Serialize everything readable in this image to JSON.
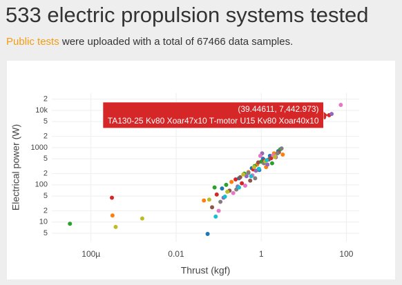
{
  "header": {
    "title": "533 electric propulsion systems tested",
    "subtitle_link": "Public tests",
    "subtitle_text": "were uploaded with a total of 67466 data samples."
  },
  "chart_data": {
    "type": "scatter",
    "xlabel": "Thrust (kgf)",
    "ylabel": "Electrical power (W)",
    "xlog": true,
    "ylog": true,
    "grid": true,
    "xlim": [
      1.2e-05,
      200
    ],
    "ylim": [
      3,
      29000
    ],
    "xticks": [
      {
        "value": 0.0001,
        "label": "100µ"
      },
      0.01,
      1,
      100
    ],
    "yticks": [
      5,
      10,
      {
        "value": 20,
        "label": "2"
      },
      {
        "value": 50,
        "label": "5"
      },
      100,
      {
        "value": 200,
        "label": "2"
      },
      {
        "value": 500,
        "label": "5"
      },
      1000,
      {
        "value": 2000,
        "label": "2"
      },
      {
        "value": 5000,
        "label": "5"
      },
      {
        "value": 10000,
        "label": "10k"
      },
      {
        "value": 20000,
        "label": "2"
      }
    ],
    "hover": {
      "label": "(39.44611, 7,442.973)",
      "name": "TA130-25 Kv80 Xoar47x10 T-motor U15 Kv80 Xoar40x10",
      "color": "#d62728",
      "x": 39.44611,
      "y": 7442.973
    },
    "series": [
      {
        "color": "#1f77b4",
        "x": [
          0.055,
          0.12,
          0.3,
          0.6,
          1.1,
          1.6,
          2.5,
          0.9
        ],
        "values": [
          4.8,
          80,
          150,
          280,
          500,
          600,
          800,
          250
        ]
      },
      {
        "color": "#ff7f0e",
        "x": [
          0.00032,
          0.045,
          0.2,
          0.5,
          0.8,
          1.3,
          2.0,
          3.2
        ],
        "values": [
          15,
          38,
          120,
          220,
          350,
          300,
          700,
          650
        ]
      },
      {
        "color": "#2ca02c",
        "x": [
          3.2e-05,
          0.08,
          0.15,
          0.4,
          0.7,
          1.0,
          1.8,
          2.8
        ],
        "values": [
          9,
          85,
          100,
          200,
          320,
          420,
          380,
          900
        ]
      },
      {
        "color": "#d62728",
        "x": [
          0.00031,
          0.09,
          0.25,
          0.35,
          0.65,
          1.2,
          1.7,
          30,
          39.44611
        ],
        "values": [
          45,
          55,
          140,
          110,
          260,
          450,
          520,
          6500,
          7442.973
        ]
      },
      {
        "color": "#9467bd",
        "x": [
          0.13,
          0.28,
          0.45,
          0.75,
          1.05,
          2.2,
          45,
          1.4
        ],
        "values": [
          45,
          90,
          170,
          240,
          700,
          550,
          8000,
          350
        ]
      },
      {
        "color": "#8c564b",
        "x": [
          0.07,
          0.18,
          0.32,
          0.55,
          0.85,
          1.5,
          2.6
        ],
        "values": [
          25,
          70,
          160,
          130,
          400,
          480,
          750
        ]
      },
      {
        "color": "#e377c2",
        "x": [
          0.1,
          0.22,
          0.42,
          0.62,
          0.95,
          1.9,
          74
        ],
        "values": [
          20,
          60,
          95,
          180,
          600,
          620,
          14000
        ]
      },
      {
        "color": "#7f7f7f",
        "x": [
          0.11,
          0.26,
          0.5,
          0.72,
          1.15,
          2.4,
          3.0
        ],
        "values": [
          35,
          75,
          210,
          150,
          380,
          700,
          950
        ]
      },
      {
        "color": "#bcbd22",
        "x": [
          0.00038,
          0.0016,
          0.06,
          0.16,
          0.38,
          0.68,
          1.25,
          2.1
        ],
        "values": [
          7.4,
          12.5,
          40,
          65,
          190,
          300,
          430,
          560
        ]
      },
      {
        "color": "#17becf",
        "x": [
          0.085,
          0.14,
          0.3,
          0.58,
          0.88,
          1.35,
          25
        ],
        "values": [
          14,
          48,
          85,
          170,
          270,
          460,
          5000
        ]
      }
    ]
  }
}
